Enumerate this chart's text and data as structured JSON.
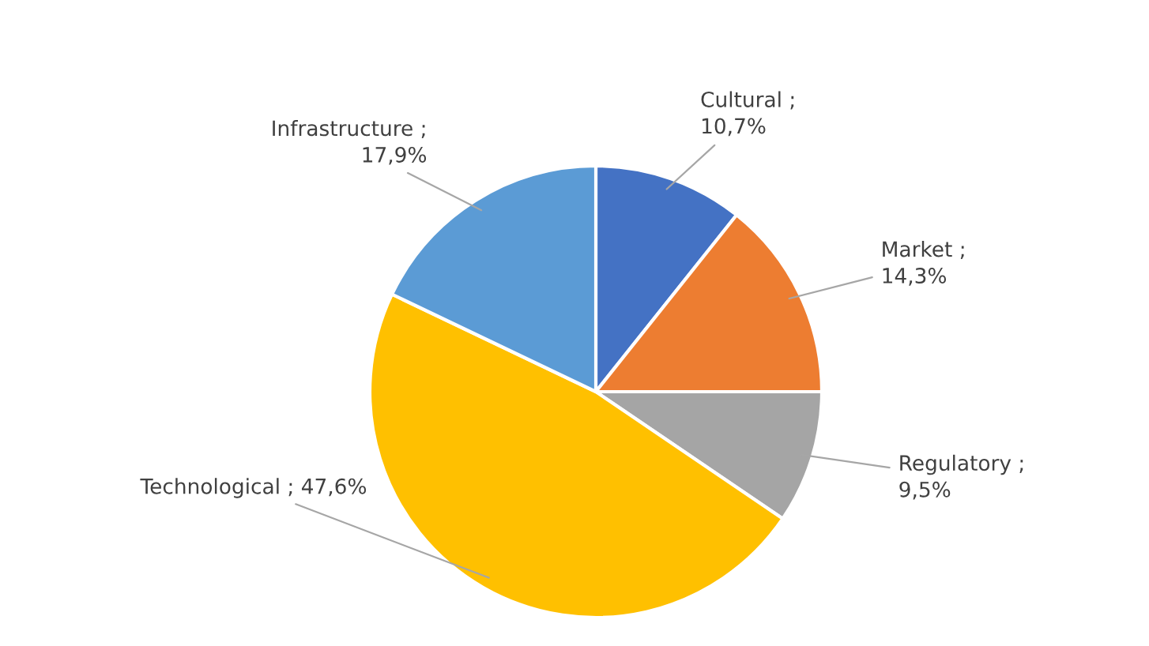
{
  "chart_data": {
    "type": "pie",
    "categories": [
      "Cultural",
      "Market",
      "Regulatory",
      "Technological",
      "Infrastructure"
    ],
    "values": [
      10.7,
      14.3,
      9.5,
      47.6,
      17.9
    ],
    "colors": [
      "#4472c4",
      "#ed7d31",
      "#a5a5a5",
      "#ffc000",
      "#5b9bd5"
    ],
    "value_labels": [
      ";\n10,7%",
      ";\n14,3%",
      ";\n9,5%",
      "; 47,6%",
      ";\n17,9%"
    ]
  }
}
